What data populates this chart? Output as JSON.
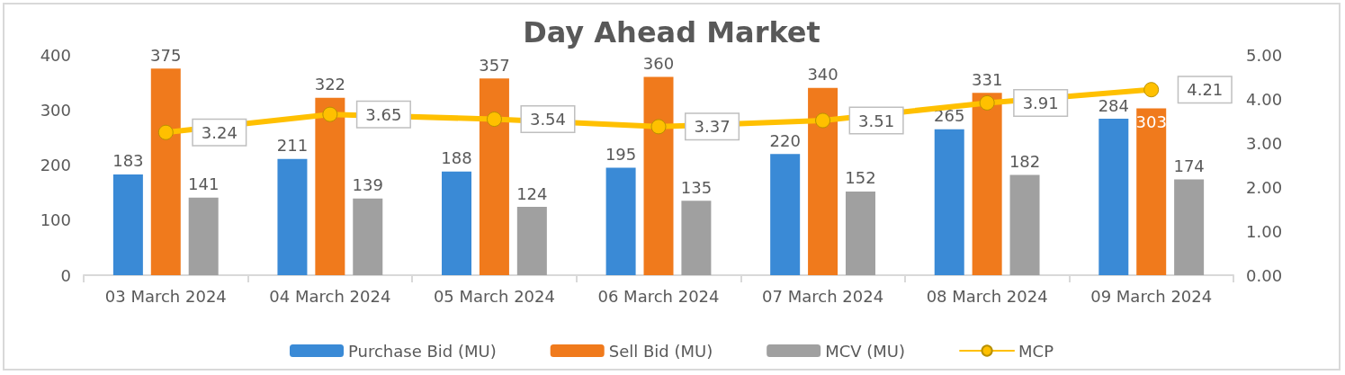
{
  "chart_data": {
    "type": "bar",
    "title": "Day Ahead Market",
    "categories": [
      "03 March 2024",
      "04 March 2024",
      "05 March 2024",
      "06 March 2024",
      "07 March 2024",
      "08 March 2024",
      "09 March 2024"
    ],
    "series": [
      {
        "name": "Purchase Bid (MU)",
        "color": "#3a8ad6",
        "values": [
          183,
          211,
          188,
          195,
          220,
          265,
          284
        ]
      },
      {
        "name": "Sell Bid (MU)",
        "color": "#f07a1c",
        "values": [
          375,
          322,
          357,
          360,
          340,
          331,
          303
        ]
      },
      {
        "name": "MCV (MU)",
        "color": "#a0a0a0",
        "values": [
          141,
          139,
          124,
          135,
          152,
          182,
          174
        ]
      },
      {
        "name": "MCP",
        "type": "line",
        "axis": "y2",
        "color": "#ffc000",
        "values": [
          3.24,
          3.65,
          3.54,
          3.37,
          3.51,
          3.91,
          4.21
        ]
      }
    ],
    "ylim": [
      0,
      400
    ],
    "yticks": [
      0,
      100,
      200,
      300,
      400
    ],
    "y2lim": [
      0,
      5
    ],
    "y2ticks": [
      {
        "value": 0,
        "label": "0.00"
      },
      {
        "value": 1,
        "label": "1.00"
      },
      {
        "value": 2,
        "label": "2.00"
      },
      {
        "value": 3,
        "label": "3.00"
      },
      {
        "value": 4,
        "label": "4.00"
      },
      {
        "value": 5,
        "label": "5.00"
      }
    ],
    "data_labels": true,
    "legend": "bottom",
    "grid": false,
    "marker": "circle",
    "line_style": "solid"
  }
}
